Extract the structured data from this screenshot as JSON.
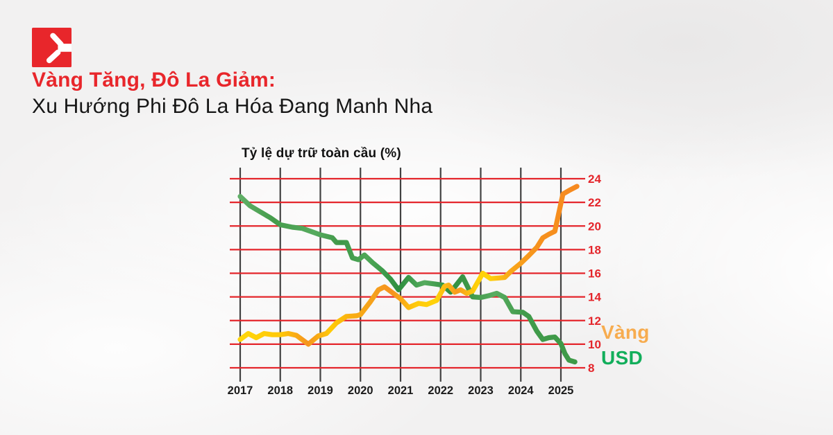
{
  "page": {
    "background": "#F2F1F1"
  },
  "brand": {
    "logo_color": "#E8262B"
  },
  "header": {
    "title_line1": "Vàng Tăng, Đô La Giảm:",
    "title_line1_color": "#E8262B",
    "title_line2": "Xu Hướng Phi Đô La Hóa Đang Manh Nha",
    "title_line2_color": "#161616"
  },
  "chart_data": {
    "type": "line",
    "title": "Tỷ lệ dự trữ toàn cầu (%)",
    "xlabel": "",
    "ylabel": "Tỷ lệ dự trữ toàn cầu (%)",
    "xlim": [
      2017,
      2025.5
    ],
    "ylim": [
      8,
      24
    ],
    "grid": true,
    "x_ticks": [
      "2017",
      "2018",
      "2019",
      "2020",
      "2021",
      "2022",
      "2023",
      "2024",
      "2025"
    ],
    "y_ticks": [
      24,
      22,
      20,
      18,
      16,
      14,
      12,
      10,
      8
    ],
    "axis_colors": {
      "y_tick_labels": "#E4252B",
      "x_tick_labels": "#1B1B1B",
      "h_grid": "#E4252B",
      "v_grid": "#424242"
    },
    "legend": [
      {
        "label": "Vàng",
        "color": "#F7AC4F"
      },
      {
        "label": "USD",
        "color": "#12AE5B"
      }
    ],
    "series": [
      {
        "name": "USD",
        "gradient": [
          [
            0,
            "#5FAF66"
          ],
          [
            0.1,
            "#459C4C"
          ],
          [
            0.22,
            "#57AB5F"
          ],
          [
            0.3,
            "#3F9848"
          ],
          [
            0.38,
            "#4EA757"
          ],
          [
            0.475,
            "#2E8F3F"
          ],
          [
            0.55,
            "#55AB5E"
          ],
          [
            0.625,
            "#2F9040"
          ],
          [
            0.68,
            "#3E9747"
          ],
          [
            0.76,
            "#58AC60"
          ],
          [
            0.85,
            "#419B4B"
          ],
          [
            1,
            "#3E9A47"
          ]
        ],
        "points": [
          [
            2017.0,
            22.5
          ],
          [
            2017.25,
            21.7
          ],
          [
            2017.5,
            21.2
          ],
          [
            2017.75,
            20.7
          ],
          [
            2018.0,
            20.1
          ],
          [
            2018.3,
            19.9
          ],
          [
            2018.55,
            19.8
          ],
          [
            2018.8,
            19.5
          ],
          [
            2019.0,
            19.25
          ],
          [
            2019.3,
            19.0
          ],
          [
            2019.4,
            18.6
          ],
          [
            2019.65,
            18.6
          ],
          [
            2019.8,
            17.3
          ],
          [
            2019.95,
            17.15
          ],
          [
            2020.1,
            17.55
          ],
          [
            2020.3,
            16.9
          ],
          [
            2020.55,
            16.2
          ],
          [
            2020.75,
            15.5
          ],
          [
            2020.95,
            14.6
          ],
          [
            2021.2,
            15.65
          ],
          [
            2021.4,
            15.0
          ],
          [
            2021.6,
            15.2
          ],
          [
            2021.85,
            15.1
          ],
          [
            2022.05,
            15.0
          ],
          [
            2022.25,
            14.4
          ],
          [
            2022.55,
            15.7
          ],
          [
            2022.8,
            14.0
          ],
          [
            2023.0,
            13.95
          ],
          [
            2023.2,
            14.1
          ],
          [
            2023.4,
            14.3
          ],
          [
            2023.6,
            13.95
          ],
          [
            2023.8,
            12.75
          ],
          [
            2024.05,
            12.7
          ],
          [
            2024.2,
            12.35
          ],
          [
            2024.4,
            11.1
          ],
          [
            2024.55,
            10.4
          ],
          [
            2024.7,
            10.55
          ],
          [
            2024.85,
            10.6
          ],
          [
            2025.0,
            10.05
          ],
          [
            2025.1,
            9.2
          ],
          [
            2025.2,
            8.65
          ],
          [
            2025.35,
            8.5
          ]
        ]
      },
      {
        "name": "Vàng",
        "gradient": [
          [
            0,
            "#FFD60A"
          ],
          [
            0.12,
            "#FFC808"
          ],
          [
            0.2,
            "#F5941F"
          ],
          [
            0.27,
            "#FFCB07"
          ],
          [
            0.33,
            "#F9AE12"
          ],
          [
            0.4,
            "#F5A01D"
          ],
          [
            0.45,
            "#F6921F"
          ],
          [
            0.52,
            "#FFC90B"
          ],
          [
            0.58,
            "#FFD30A"
          ],
          [
            0.645,
            "#F79A1E"
          ],
          [
            0.7,
            "#FFD00A"
          ],
          [
            0.74,
            "#FFD20A"
          ],
          [
            0.8,
            "#F9A81A"
          ],
          [
            0.88,
            "#F6921E"
          ],
          [
            1,
            "#F6891F"
          ]
        ],
        "points": [
          [
            2017.0,
            10.4
          ],
          [
            2017.2,
            10.9
          ],
          [
            2017.4,
            10.55
          ],
          [
            2017.6,
            10.9
          ],
          [
            2017.8,
            10.8
          ],
          [
            2018.0,
            10.8
          ],
          [
            2018.2,
            10.9
          ],
          [
            2018.4,
            10.75
          ],
          [
            2018.7,
            10.0
          ],
          [
            2018.95,
            10.7
          ],
          [
            2019.15,
            10.9
          ],
          [
            2019.4,
            11.8
          ],
          [
            2019.65,
            12.35
          ],
          [
            2019.9,
            12.4
          ],
          [
            2020.0,
            12.5
          ],
          [
            2020.25,
            13.6
          ],
          [
            2020.45,
            14.6
          ],
          [
            2020.6,
            14.85
          ],
          [
            2020.9,
            14.1
          ],
          [
            2021.0,
            13.85
          ],
          [
            2021.2,
            13.1
          ],
          [
            2021.45,
            13.45
          ],
          [
            2021.65,
            13.35
          ],
          [
            2021.9,
            13.7
          ],
          [
            2022.1,
            14.9
          ],
          [
            2022.2,
            15.0
          ],
          [
            2022.35,
            14.4
          ],
          [
            2022.5,
            14.6
          ],
          [
            2022.65,
            14.3
          ],
          [
            2022.8,
            14.5
          ],
          [
            2023.05,
            16.0
          ],
          [
            2023.25,
            15.55
          ],
          [
            2023.45,
            15.6
          ],
          [
            2023.6,
            15.65
          ],
          [
            2023.75,
            16.15
          ],
          [
            2024.0,
            16.85
          ],
          [
            2024.2,
            17.5
          ],
          [
            2024.4,
            18.2
          ],
          [
            2024.55,
            19.0
          ],
          [
            2024.7,
            19.3
          ],
          [
            2024.85,
            19.55
          ],
          [
            2025.05,
            22.7
          ],
          [
            2025.2,
            23.0
          ],
          [
            2025.4,
            23.35
          ]
        ]
      }
    ]
  }
}
